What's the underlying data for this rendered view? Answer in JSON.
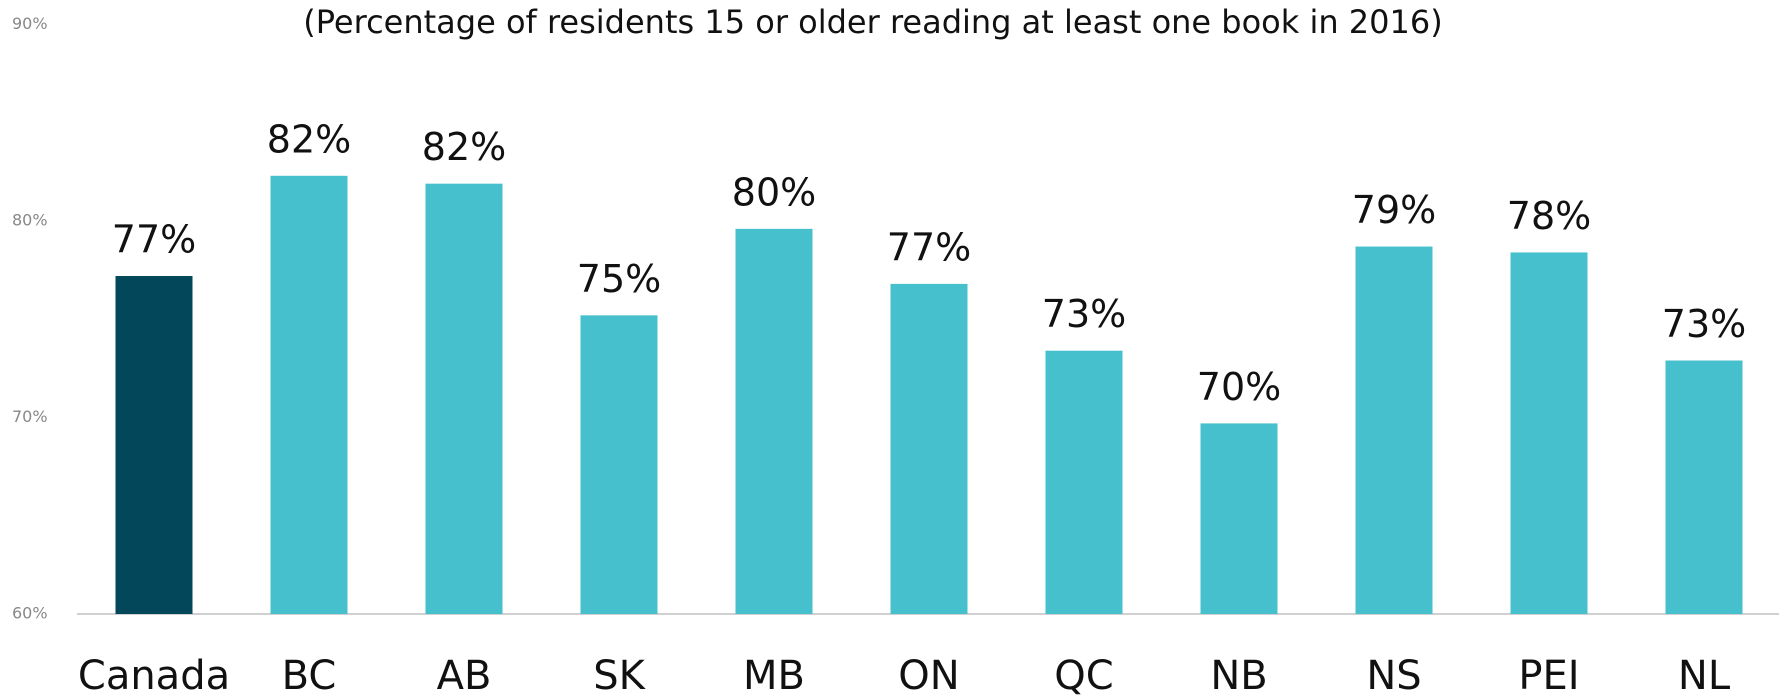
{
  "chart_data": {
    "type": "bar",
    "title": "(Percentage of residents 15 or older reading at least one book in 2016)",
    "categories": [
      "Canada",
      "BC",
      "AB",
      "SK",
      "MB",
      "ON",
      "QC",
      "NB",
      "NS",
      "PEI",
      "NL"
    ],
    "values": [
      77.2,
      82.3,
      81.9,
      75.2,
      79.6,
      76.8,
      73.4,
      69.7,
      78.7,
      78.4,
      72.9
    ],
    "value_labels": [
      "77%",
      "82%",
      "82%",
      "75%",
      "80%",
      "77%",
      "73%",
      "70%",
      "79%",
      "78%",
      "73%"
    ],
    "colors": [
      "#02475a",
      "#47c0cd",
      "#47c0cd",
      "#47c0cd",
      "#47c0cd",
      "#47c0cd",
      "#47c0cd",
      "#47c0cd",
      "#47c0cd",
      "#47c0cd",
      "#47c0cd"
    ],
    "ylim": [
      60,
      90
    ],
    "yticks": [
      {
        "value": 60,
        "label": "60%"
      },
      {
        "value": 70,
        "label": "70%"
      },
      {
        "value": 80,
        "label": "80%"
      },
      {
        "value": 90,
        "label": "90%"
      }
    ],
    "grid": false
  }
}
